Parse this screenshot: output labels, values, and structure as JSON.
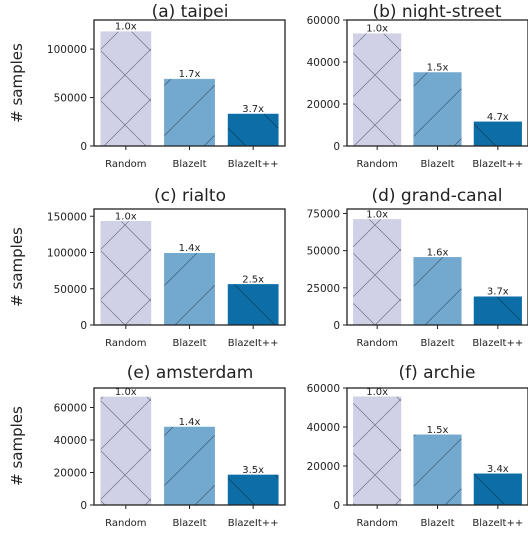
{
  "chart_data": [
    {
      "type": "bar",
      "title": "(a) taipei",
      "ylabel": "# samples",
      "categories": [
        "Random",
        "BlazeIt",
        "BlazeIt++"
      ],
      "values": [
        118000,
        69000,
        33000
      ],
      "data_labels": [
        "1.0x",
        "1.7x",
        "3.7x"
      ],
      "yticks": [
        0,
        50000,
        100000
      ],
      "ylim": [
        0,
        130000
      ]
    },
    {
      "type": "bar",
      "title": "(b) night-street",
      "ylabel": "",
      "categories": [
        "Random",
        "BlazeIt",
        "BlazeIt++"
      ],
      "values": [
        53500,
        35000,
        11500
      ],
      "data_labels": [
        "1.0x",
        "1.5x",
        "4.7x"
      ],
      "yticks": [
        0,
        20000,
        40000,
        60000
      ],
      "ylim": [
        0,
        60000
      ]
    },
    {
      "type": "bar",
      "title": "(c) rialto",
      "ylabel": "# samples",
      "categories": [
        "Random",
        "BlazeIt",
        "BlazeIt++"
      ],
      "values": [
        143000,
        99000,
        56000
      ],
      "data_labels": [
        "1.0x",
        "1.4x",
        "2.5x"
      ],
      "yticks": [
        0,
        50000,
        100000,
        150000
      ],
      "ylim": [
        0,
        160000
      ]
    },
    {
      "type": "bar",
      "title": "(d) grand-canal",
      "ylabel": "",
      "categories": [
        "Random",
        "BlazeIt",
        "BlazeIt++"
      ],
      "values": [
        71000,
        45500,
        19000
      ],
      "data_labels": [
        "1.0x",
        "1.6x",
        "3.7x"
      ],
      "yticks": [
        0,
        25000,
        50000,
        75000
      ],
      "ylim": [
        0,
        78000
      ]
    },
    {
      "type": "bar",
      "title": "(e) amsterdam",
      "ylabel": "# samples",
      "categories": [
        "Random",
        "BlazeIt",
        "BlazeIt++"
      ],
      "values": [
        66500,
        48000,
        18500
      ],
      "data_labels": [
        "1.0x",
        "1.4x",
        "3.5x"
      ],
      "yticks": [
        0,
        20000,
        40000,
        60000
      ],
      "ylim": [
        0,
        72000
      ]
    },
    {
      "type": "bar",
      "title": "(f) archie",
      "ylabel": "",
      "categories": [
        "Random",
        "BlazeIt",
        "BlazeIt++"
      ],
      "values": [
        55500,
        36000,
        16000
      ],
      "data_labels": [
        "1.0x",
        "1.5x",
        "3.4x"
      ],
      "yticks": [
        0,
        20000,
        40000,
        60000
      ],
      "ylim": [
        0,
        60000
      ]
    }
  ],
  "bar_colors": [
    "#d0d1e6",
    "#74a9cf",
    "#0d6ea7"
  ]
}
